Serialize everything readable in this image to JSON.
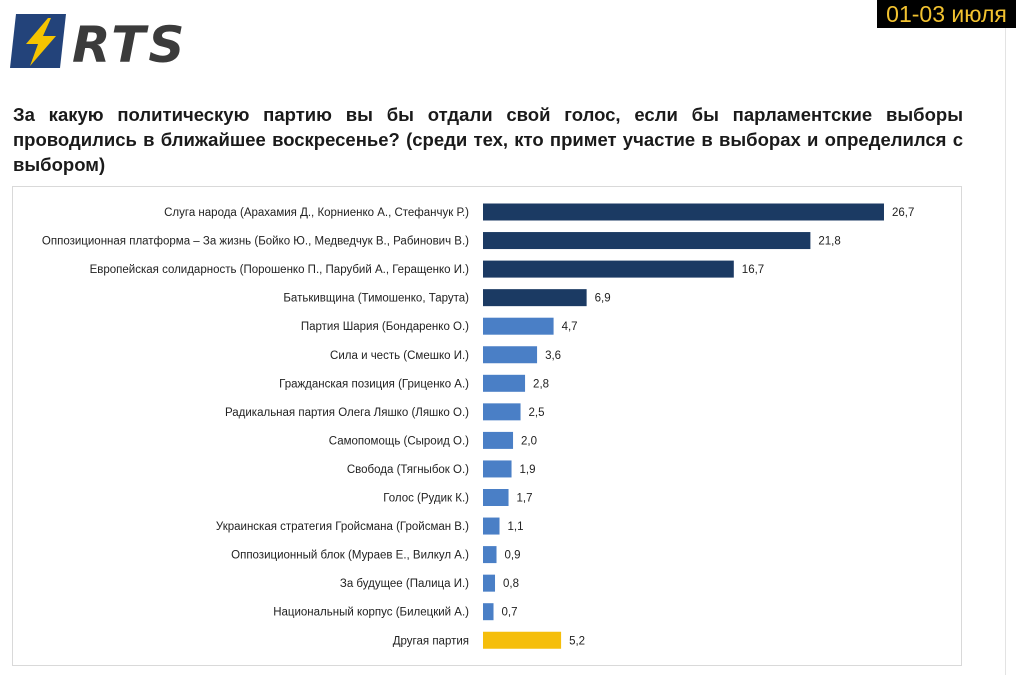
{
  "header": {
    "logo_text": "RTS",
    "date": "01-03 июля"
  },
  "question": "За какую политическую партию вы бы отдали свой голос, если бы парламентские выборы проводились в ближайшее воскресенье? (среди тех, кто примет участие в выборах и определился с выбором)",
  "colors": {
    "dark": "#1b3a63",
    "light": "#4a7fc6",
    "other": "#f5be0b",
    "badge_bg": "#000000",
    "badge_text": "#f2c230",
    "logo_blue": "#23437a",
    "logo_yellow": "#f5c400",
    "logo_grey": "#3b3b3b"
  },
  "chart_data": {
    "type": "bar",
    "orientation": "horizontal",
    "xlim": [
      0,
      27.5
    ],
    "grid": false,
    "categories": [
      "Слуга народа (Арахамия Д., Корниенко А., Стефанчук Р.)",
      "Оппозиционная платформа – За жизнь (Бойко Ю., Медведчук В., Рабинович В.)",
      "Европейская солидарность (Порошенко П., Парубий А., Геращенко И.)",
      "Батькивщина (Тимошенко, Тарута)",
      "Партия Шария (Бондаренко О.)",
      "Сила и честь (Смешко И.)",
      "Гражданская позиция (Гриценко А.)",
      "Радикальная партия Олега Ляшко (Ляшко О.)",
      "Самопомощь (Сыроид О.)",
      "Свобода (Тягныбок О.)",
      "Голос (Рудик К.)",
      "Украинская стратегия Гройсмана (Гройсман В.)",
      "Оппозиционный блок (Мураев Е., Вилкул А.)",
      "За будущее (Палица И.)",
      "Национальный корпус (Билецкий А.)",
      "Другая партия"
    ],
    "values": [
      26.7,
      21.8,
      16.7,
      6.9,
      4.7,
      3.6,
      2.8,
      2.5,
      2.0,
      1.9,
      1.7,
      1.1,
      0.9,
      0.8,
      0.7,
      5.2
    ],
    "value_labels": [
      "26,7",
      "21,8",
      "16,7",
      "6,9",
      "4,7",
      "3,6",
      "2,8",
      "2,5",
      "2,0",
      "1,9",
      "1,7",
      "1,1",
      "0,9",
      "0,8",
      "0,7",
      "5,2"
    ],
    "bar_colors": [
      "dark",
      "dark",
      "dark",
      "dark",
      "light",
      "light",
      "light",
      "light",
      "light",
      "light",
      "light",
      "light",
      "light",
      "light",
      "light",
      "other"
    ]
  }
}
